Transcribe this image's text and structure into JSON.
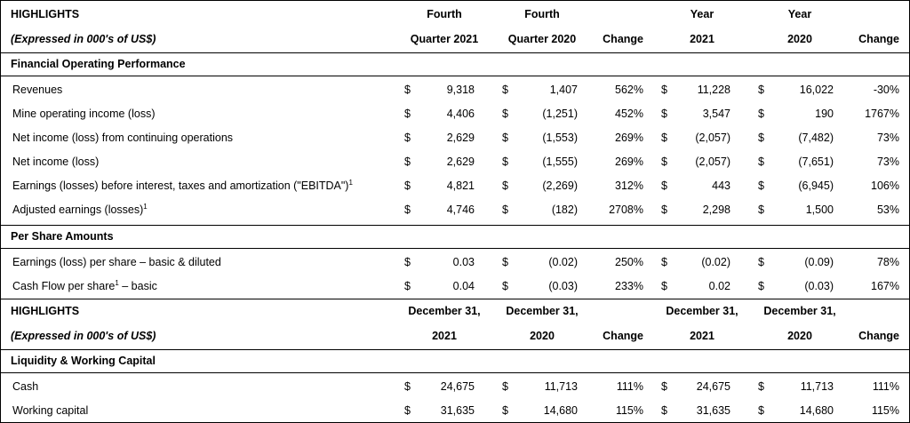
{
  "header1": {
    "title": "HIGHLIGHTS",
    "subtitle": "(Expressed in 000's of US$)",
    "col_q21": [
      "Fourth",
      "Quarter 2021"
    ],
    "col_q20": [
      "Fourth",
      "Quarter 2020"
    ],
    "col_chg1": "Change",
    "col_y21": [
      "Year",
      "2021"
    ],
    "col_y20": [
      "Year",
      "2020"
    ],
    "col_chg2": "Change"
  },
  "header2": {
    "title": "HIGHLIGHTS",
    "subtitle": "(Expressed in 000's of US$)",
    "col_a": [
      "December 31,",
      "2021"
    ],
    "col_b": [
      "December 31,",
      "2020"
    ],
    "col_chg1": "Change",
    "col_c": [
      "December 31,",
      "2021"
    ],
    "col_d": [
      "December 31,",
      "2020"
    ],
    "col_chg2": "Change"
  },
  "currency": "$",
  "sections": {
    "financial": "Financial Operating Performance",
    "per_share": "Per Share Amounts",
    "liquidity": "Liquidity & Working Capital"
  },
  "rows": [
    {
      "label": "Revenues",
      "sup": "",
      "v1": "9,318",
      "v2": "1,407",
      "c1": "562%",
      "v3": "11,228",
      "v4": "16,022",
      "c2": "-30%"
    },
    {
      "label": "Mine operating income (loss)",
      "sup": "",
      "v1": "4,406",
      "v2": "(1,251)",
      "c1": "452%",
      "v3": "3,547",
      "v4": "190",
      "c2": "1767%"
    },
    {
      "label": "Net income (loss) from continuing operations",
      "sup": "",
      "v1": "2,629",
      "v2": "(1,553)",
      "c1": "269%",
      "v3": "(2,057)",
      "v4": "(7,482)",
      "c2": "73%"
    },
    {
      "label": "Net income (loss)",
      "sup": "",
      "v1": "2,629",
      "v2": "(1,555)",
      "c1": "269%",
      "v3": "(2,057)",
      "v4": "(7,651)",
      "c2": "73%"
    },
    {
      "label": "Earnings (losses) before interest, taxes and amortization (\"EBITDA\")",
      "sup": "1",
      "v1": "4,821",
      "v2": "(2,269)",
      "c1": "312%",
      "v3": "443",
      "v4": "(6,945)",
      "c2": "106%"
    },
    {
      "label": "Adjusted earnings (losses)",
      "sup": "1",
      "v1": "4,746",
      "v2": "(182)",
      "c1": "2708%",
      "v3": "2,298",
      "v4": "1,500",
      "c2": "53%"
    },
    {
      "label": "Earnings (loss) per share – basic & diluted",
      "sup": "",
      "v1": "0.03",
      "v2": "(0.02)",
      "c1": "250%",
      "v3": "(0.02)",
      "v4": "(0.09)",
      "c2": "78%"
    },
    {
      "label": "Cash Flow per share",
      "sup": "1",
      "suffix": " – basic",
      "v1": "0.04",
      "v2": "(0.03)",
      "c1": "233%",
      "v3": "0.02",
      "v4": "(0.03)",
      "c2": "167%"
    },
    {
      "label": "Cash",
      "sup": "",
      "v1": "24,675",
      "v2": "11,713",
      "c1": "111%",
      "v3": "24,675",
      "v4": "11,713",
      "c2": "111%"
    },
    {
      "label": "Working capital",
      "sup": "",
      "v1": "31,635",
      "v2": "14,680",
      "c1": "115%",
      "v3": "31,635",
      "v4": "14,680",
      "c2": "115%"
    }
  ]
}
